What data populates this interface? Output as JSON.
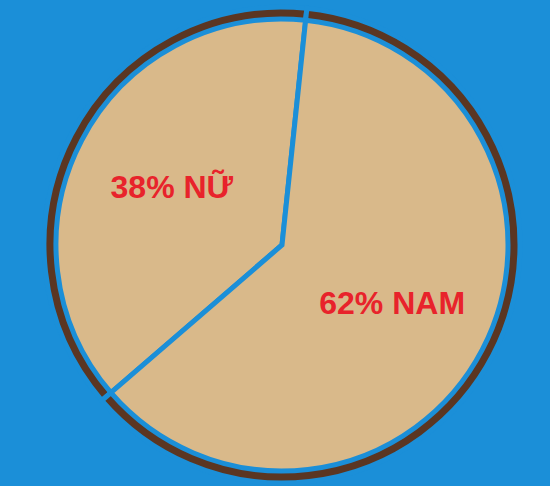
{
  "chart_data": {
    "type": "pie",
    "categories": [
      "NỮ",
      "NAM"
    ],
    "values": [
      38,
      62
    ],
    "value_labels": [
      "38% NỮ",
      "62% NAM"
    ],
    "colors": [
      "#d9b98a",
      "#d9b98a"
    ],
    "data_labels": true
  }
}
